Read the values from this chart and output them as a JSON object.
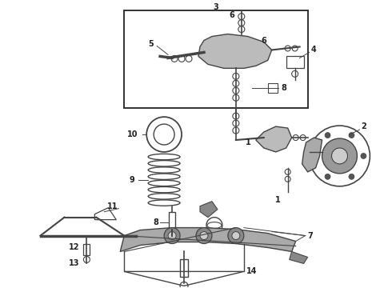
{
  "bg_color": "#ffffff",
  "line_color": "#444444",
  "dark_color": "#222222",
  "fig_width": 4.9,
  "fig_height": 3.6,
  "dpi": 100
}
